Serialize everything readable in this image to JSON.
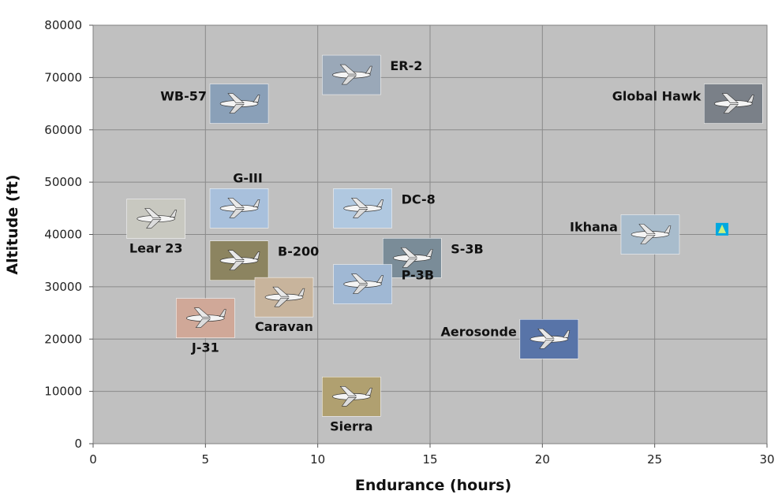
{
  "chart_data": {
    "type": "scatter",
    "xlabel": "Endurance (hours)",
    "ylabel": "Altitude (ft)",
    "xlim": [
      0,
      30
    ],
    "ylim": [
      0,
      80000
    ],
    "xticks": [
      "0",
      "5",
      "10",
      "15",
      "20",
      "25",
      "30"
    ],
    "yticks": [
      "0",
      "10000",
      "20000",
      "30000",
      "40000",
      "50000",
      "60000",
      "70000",
      "80000"
    ],
    "grid": true,
    "plot_background": "#c0c0c0",
    "grid_color": "#8a8a8a",
    "marker_color": "#00a8e0",
    "points": [
      {
        "label": "WB-57",
        "x": 6.5,
        "y": 65000,
        "icon": "jet-aircraft-icon",
        "color": "#8aa0b8",
        "label_pos": "left"
      },
      {
        "label": "ER-2",
        "x": 11.5,
        "y": 70500,
        "icon": "jet-aircraft-icon",
        "color": "#9aa8b8",
        "label_pos": "right"
      },
      {
        "label": "Global Hawk",
        "x": 28.5,
        "y": 65000,
        "icon": "uav-icon",
        "color": "#7a8088",
        "label_pos": "left"
      },
      {
        "label": "G-III",
        "x": 6.5,
        "y": 45000,
        "icon": "jet-aircraft-icon",
        "color": "#a8c0dc",
        "label_pos": "top"
      },
      {
        "label": "DC-8",
        "x": 12,
        "y": 45000,
        "icon": "airliner-icon",
        "color": "#b0c8e0",
        "label_pos": "right"
      },
      {
        "label": "Lear 23",
        "x": 2.8,
        "y": 43000,
        "icon": "jet-aircraft-icon",
        "color": "#c8c8c0",
        "label_pos": "bottom"
      },
      {
        "label": "Ikhana",
        "x": 24.8,
        "y": 40000,
        "icon": "uav-icon",
        "color": "#a8bccc",
        "label_pos": "left"
      },
      {
        "label": "B-200",
        "x": 6.5,
        "y": 35000,
        "icon": "propeller-aircraft-icon",
        "color": "#8c8460",
        "label_pos": "right"
      },
      {
        "label": "S-3B",
        "x": 14.2,
        "y": 35500,
        "icon": "jet-aircraft-icon",
        "color": "#7a8c98",
        "label_pos": "right"
      },
      {
        "label": "P-3B",
        "x": 12,
        "y": 30500,
        "icon": "propeller-aircraft-icon",
        "color": "#a0b8d4",
        "label_pos": "right"
      },
      {
        "label": "Caravan",
        "x": 8.5,
        "y": 28000,
        "icon": "propeller-aircraft-icon",
        "color": "#c8b49c",
        "label_pos": "bottom"
      },
      {
        "label": "J-31",
        "x": 5,
        "y": 24000,
        "icon": "jet-aircraft-icon",
        "color": "#d0a898",
        "label_pos": "bottom"
      },
      {
        "label": "Aerosonde",
        "x": 20.3,
        "y": 20000,
        "icon": "uav-icon",
        "color": "#5874a8",
        "label_pos": "left"
      },
      {
        "label": "Sierra",
        "x": 11.5,
        "y": 9000,
        "icon": "uav-icon",
        "color": "#b0a070",
        "label_pos": "bottom"
      }
    ],
    "markers": [
      {
        "x": 28,
        "y": 41000
      }
    ]
  }
}
